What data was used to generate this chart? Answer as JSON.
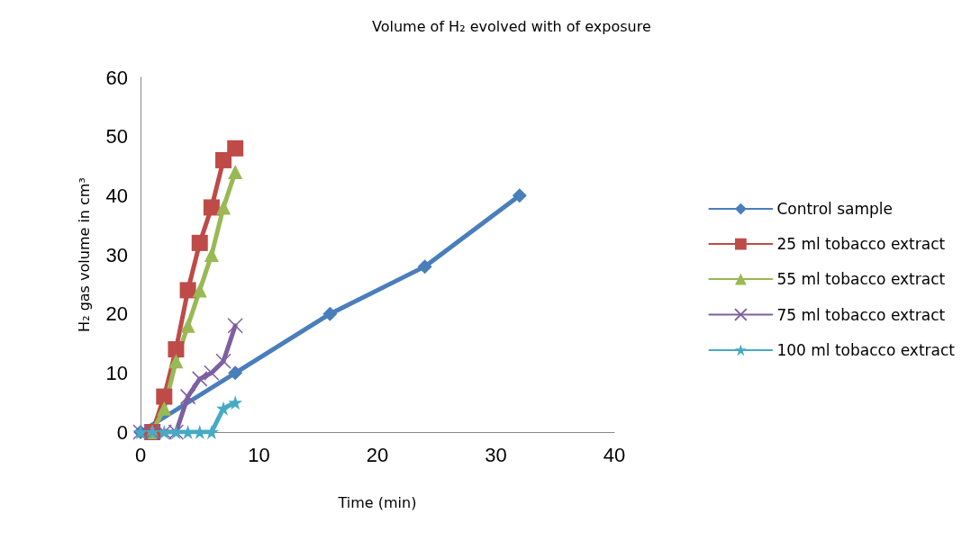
{
  "chart_data": {
    "type": "line",
    "title": "Volume of H₂ evolved with of exposure",
    "xlabel": "Time (min)",
    "ylabel": "H₂ gas volume in cm³",
    "xlim": [
      0,
      40
    ],
    "xticks": [
      0,
      10,
      20,
      30,
      40
    ],
    "ylim": [
      0,
      60
    ],
    "yticks": [
      0,
      10,
      20,
      30,
      40,
      50,
      60
    ],
    "grid": false,
    "legend": "right",
    "series": [
      {
        "name": "Control sample",
        "color": "#4a7ebb",
        "marker": "diamond",
        "x": [
          0,
          8,
          16,
          24,
          32
        ],
        "values": [
          0,
          10,
          20,
          28,
          40
        ]
      },
      {
        "name": "25 ml tobacco extract",
        "color": "#be4b48",
        "marker": "square",
        "x": [
          1,
          2,
          3,
          4,
          5,
          6,
          7,
          8
        ],
        "values": [
          0,
          6,
          14,
          24,
          32,
          38,
          46,
          48
        ]
      },
      {
        "name": "55 ml tobacco extract",
        "color": "#98b954",
        "marker": "triangle",
        "x": [
          1,
          2,
          3,
          4,
          5,
          6,
          7,
          8
        ],
        "values": [
          0,
          4,
          12,
          18,
          24,
          30,
          38,
          44
        ]
      },
      {
        "name": "75 ml tobacco extract",
        "color": "#7d60a0",
        "marker": "cross",
        "x": [
          0,
          1,
          2,
          3,
          4,
          5,
          6,
          7,
          8
        ],
        "values": [
          0,
          0,
          0,
          0,
          6,
          9,
          10,
          12,
          18
        ]
      },
      {
        "name": "100 ml tobacco extract",
        "color": "#46aac5",
        "marker": "star",
        "x": [
          0,
          1,
          2,
          3,
          4,
          5,
          6,
          7,
          8
        ],
        "values": [
          0,
          0,
          0,
          0,
          0,
          0,
          0,
          4,
          5
        ]
      }
    ]
  }
}
